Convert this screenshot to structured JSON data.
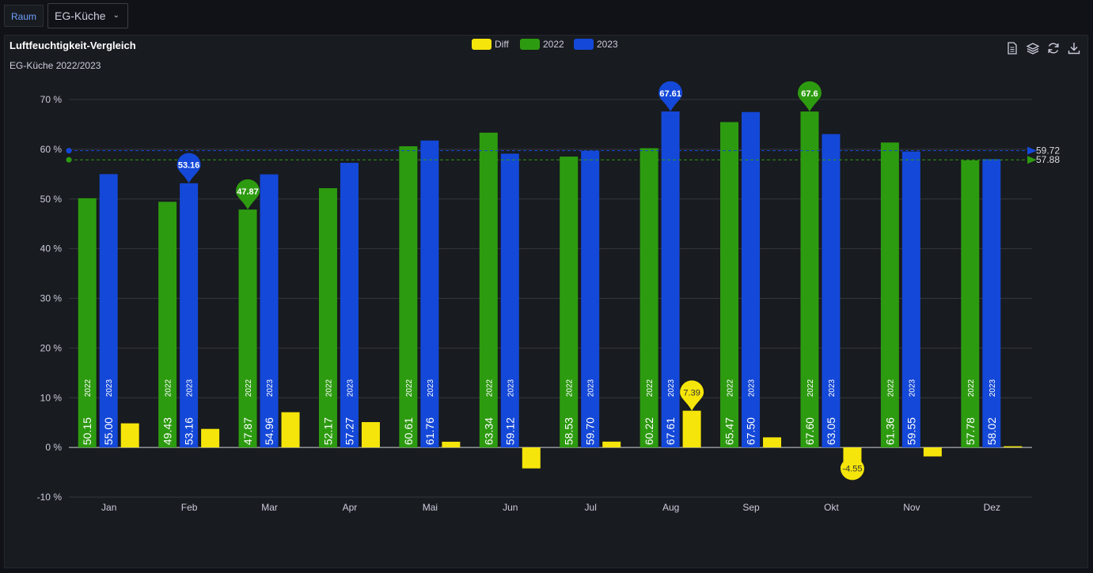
{
  "variables": {
    "label": "Raum",
    "selected": "EG-Küche"
  },
  "panel": {
    "title": "Luftfeuchtigkeit-Vergleich",
    "subtitle": "EG-Küche 2022/2023",
    "icons": [
      "document-icon",
      "layers-icon",
      "refresh-icon",
      "download-icon"
    ]
  },
  "colors": {
    "diff": "#f5e50a",
    "y2022": "#2d9b10",
    "y2023": "#1448d8",
    "grid": "#34373e",
    "text": "#ccccdc"
  },
  "chart_data": {
    "type": "bar",
    "title": "Luftfeuchtigkeit-Vergleich",
    "subtitle": "EG-Küche 2022/2023",
    "categories": [
      "Jan",
      "Feb",
      "Mar",
      "Apr",
      "Mai",
      "Jun",
      "Jul",
      "Aug",
      "Sep",
      "Okt",
      "Nov",
      "Dez"
    ],
    "series": [
      {
        "name": "2022",
        "values": [
          50.15,
          49.43,
          47.87,
          52.17,
          60.61,
          63.34,
          58.53,
          60.22,
          65.47,
          67.6,
          61.36,
          57.78
        ],
        "labels": [
          "50.15",
          "49.43",
          "47.87",
          "52.17",
          "60.61",
          "63.34",
          "58.53",
          "60.22",
          "65.47",
          "67.60",
          "61.36",
          "57.78"
        ]
      },
      {
        "name": "2023",
        "values": [
          55.0,
          53.16,
          54.96,
          57.27,
          61.76,
          59.12,
          59.7,
          67.61,
          67.5,
          63.05,
          59.55,
          58.02
        ],
        "labels": [
          "55.00",
          "53.16",
          "54.96",
          "57.27",
          "61.76",
          "59.12",
          "59.70",
          "67.61",
          "67.50",
          "63.05",
          "59.55",
          "58.02"
        ]
      },
      {
        "name": "Diff",
        "values": [
          4.85,
          3.73,
          7.09,
          5.1,
          1.15,
          -4.22,
          1.17,
          7.39,
          2.03,
          -4.55,
          -1.81,
          0.24
        ]
      }
    ],
    "legend": [
      "Diff",
      "2022",
      "2023"
    ],
    "tick_labels": [
      "70 %",
      "60 %",
      "50 %",
      "40 %",
      "30 %",
      "20 %",
      "10 %",
      "0 %",
      "-10 %"
    ],
    "ylim": [
      -10,
      70
    ],
    "yticks": [
      70,
      60,
      50,
      40,
      30,
      20,
      10,
      0,
      -10
    ],
    "markers": [
      {
        "series": "2023",
        "category": "Feb",
        "value": 53.16,
        "label": "53.16"
      },
      {
        "series": "2022",
        "category": "Mar",
        "value": 47.87,
        "label": "47.87"
      },
      {
        "series": "2023",
        "category": "Aug",
        "value": 67.61,
        "label": "67.61"
      },
      {
        "series": "2022",
        "category": "Okt",
        "value": 67.6,
        "label": "67.6"
      },
      {
        "series": "Diff",
        "category": "Aug",
        "value": 7.39,
        "label": "7.39"
      },
      {
        "series": "Diff",
        "category": "Okt",
        "value": -4.55,
        "label": "-4.55"
      }
    ],
    "mark_lines": [
      {
        "series": "2023",
        "value": 59.72,
        "label": "59.72"
      },
      {
        "series": "2022",
        "value": 57.88,
        "label": "57.88"
      }
    ]
  }
}
